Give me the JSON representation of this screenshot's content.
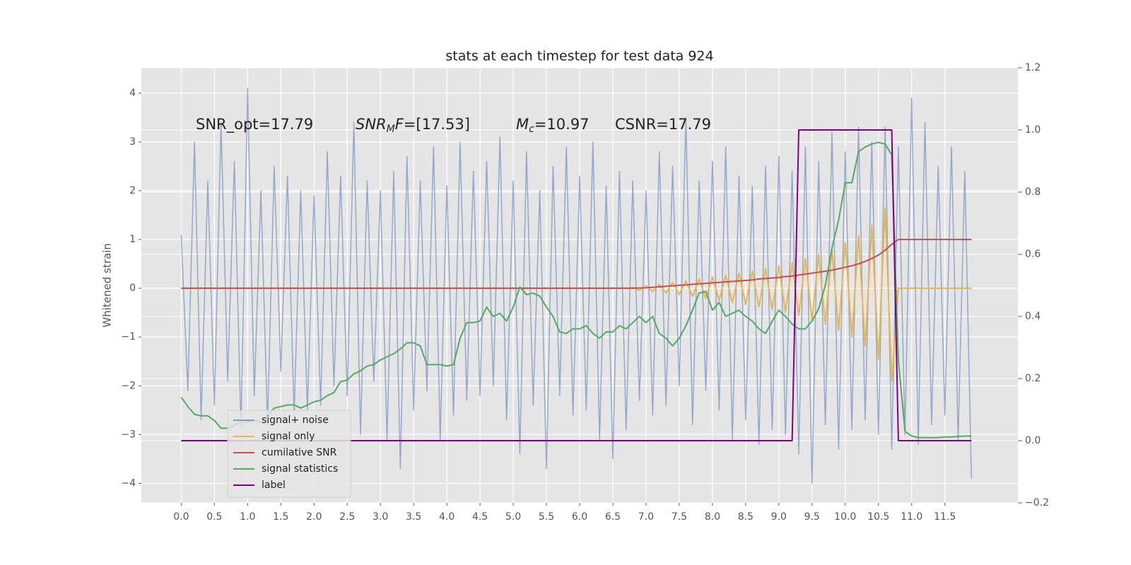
{
  "chart_data": {
    "type": "line",
    "title": "stats at each timestep for test data 924",
    "y_label": "Whitened strain",
    "background": "#e5e5e5",
    "grid": true,
    "annotations": [
      {
        "segments": [
          {
            "text": "SNR_opt=17.79",
            "style": "normal"
          }
        ]
      },
      {
        "segments": [
          {
            "text": "SNR",
            "style": "italic"
          },
          {
            "text": "M",
            "style": "italic-sub"
          },
          {
            "text": "F",
            "style": "italic"
          },
          {
            "text": "=[17.53]",
            "style": "normal"
          }
        ]
      },
      {
        "segments": [
          {
            "text": "M",
            "style": "italic"
          },
          {
            "text": "c",
            "style": "italic-sub"
          },
          {
            "text": "=10.97",
            "style": "normal"
          }
        ]
      },
      {
        "segments": [
          {
            "text": "CSNR=17.79",
            "style": "normal"
          }
        ]
      }
    ],
    "xlim": [
      -0.6,
      12.6
    ],
    "xticks": [
      {
        "value": 0,
        "label": "0.0"
      },
      0.5,
      {
        "value": 1,
        "label": "1.0"
      },
      1.5,
      {
        "value": 2,
        "label": "2.0"
      },
      2.5,
      {
        "value": 3,
        "label": "3.0"
      },
      3.5,
      {
        "value": 4,
        "label": "4.0"
      },
      4.5,
      {
        "value": 5,
        "label": "5.0"
      },
      5.5,
      {
        "value": 6,
        "label": "6.0"
      },
      6.5,
      {
        "value": 7,
        "label": "7.0"
      },
      7.5,
      {
        "value": 8,
        "label": "8.0"
      },
      8.5,
      {
        "value": 9,
        "label": "9.0"
      },
      9.5,
      {
        "value": 10,
        "label": "10.0"
      },
      10.5,
      {
        "value": 11,
        "label": "11.0"
      },
      11.5
    ],
    "ylim": [
      -4.4,
      4.52
    ],
    "yticks": [
      {
        "value": -4,
        "label": "−4"
      },
      {
        "value": -3,
        "label": "−3"
      },
      {
        "value": -2,
        "label": "−2"
      },
      {
        "value": -1,
        "label": "−1"
      },
      0,
      1,
      2,
      3,
      4
    ],
    "y2lim": [
      -0.2,
      1.2
    ],
    "y2ticks": [
      {
        "value": -0.2,
        "label": "−0.2"
      },
      {
        "value": 0,
        "label": "0.0"
      },
      0.2,
      0.4,
      0.6,
      0.8,
      {
        "value": 1,
        "label": "1.0"
      },
      {
        "value": 1.2,
        "label": "1.2"
      }
    ],
    "legend": {
      "loc": "lower left"
    },
    "x": [
      0.0,
      0.1,
      0.2,
      0.3,
      0.4,
      0.5,
      0.6,
      0.7,
      0.8,
      0.9,
      1.0,
      1.1,
      1.2,
      1.3,
      1.4,
      1.5,
      1.6,
      1.7,
      1.8,
      1.9,
      2.0,
      2.1,
      2.2,
      2.3,
      2.4,
      2.5,
      2.6,
      2.7,
      2.8,
      2.9,
      3.0,
      3.1,
      3.2,
      3.3,
      3.4,
      3.5,
      3.6,
      3.7,
      3.8,
      3.9,
      4.0,
      4.1,
      4.2,
      4.3,
      4.4,
      4.5,
      4.6,
      4.7,
      4.8,
      4.9,
      5.0,
      5.1,
      5.2,
      5.3,
      5.4,
      5.5,
      5.6,
      5.7,
      5.8,
      5.9,
      6.0,
      6.1,
      6.2,
      6.3,
      6.4,
      6.5,
      6.6,
      6.7,
      6.8,
      6.9,
      7.0,
      7.1,
      7.2,
      7.3,
      7.4,
      7.5,
      7.6,
      7.7,
      7.8,
      7.9,
      8.0,
      8.1,
      8.2,
      8.3,
      8.4,
      8.5,
      8.6,
      8.7,
      8.8,
      8.9,
      9.0,
      9.1,
      9.2,
      9.3,
      9.4,
      9.5,
      9.6,
      9.7,
      9.8,
      9.9,
      10.0,
      10.1,
      10.2,
      10.3,
      10.4,
      10.5,
      10.6,
      10.7,
      10.8,
      10.9,
      11.0,
      11.1,
      11.2,
      11.3,
      11.4,
      11.5,
      11.6,
      11.7,
      11.8,
      11.9
    ],
    "series": [
      {
        "name": "signal+ noise",
        "color": "#8197c4",
        "axis": "y",
        "values": [
          1.1,
          -2.1,
          3.0,
          -2.7,
          2.2,
          -2.4,
          3.4,
          -1.9,
          2.6,
          -2.9,
          4.1,
          -2.2,
          2.0,
          -2.8,
          2.5,
          -1.7,
          2.3,
          -2.6,
          2.0,
          -2.5,
          1.9,
          -2.4,
          2.8,
          -2.0,
          2.3,
          -2.2,
          3.4,
          -3.0,
          2.2,
          -1.9,
          2.0,
          -3.1,
          2.4,
          -3.7,
          2.7,
          -2.5,
          2.2,
          -2.1,
          2.9,
          -3.1,
          2.1,
          -2.6,
          3.0,
          -2.3,
          2.4,
          -2.2,
          2.6,
          -2.0,
          3.1,
          -2.7,
          2.2,
          -3.4,
          2.8,
          -2.4,
          2.0,
          -3.7,
          2.5,
          -2.2,
          2.9,
          -2.6,
          2.3,
          -2.5,
          3.0,
          -3.1,
          2.1,
          -3.5,
          2.4,
          -2.9,
          2.2,
          -2.3,
          2.0,
          -2.6,
          2.8,
          -2.4,
          2.5,
          -2.0,
          3.5,
          -2.8,
          2.2,
          -2.1,
          2.6,
          -2.5,
          2.9,
          -3.1,
          2.3,
          -2.7,
          2.1,
          -3.2,
          2.5,
          -2.9,
          2.7,
          -3.0,
          2.4,
          -3.4,
          2.9,
          -4.0,
          2.6,
          -2.8,
          3.2,
          -3.3,
          2.8,
          -2.9,
          3.3,
          -2.7,
          3.0,
          -3.0,
          3.3,
          -3.3,
          2.9,
          -3.0,
          3.9,
          -3.2,
          3.4,
          -2.8,
          2.5,
          -2.6,
          2.9,
          -3.1,
          2.4,
          -3.9
        ]
      },
      {
        "name": "signal only",
        "color": "#e8b54d",
        "axis": "y",
        "values": [
          0,
          0,
          0,
          0,
          0,
          0,
          0,
          0,
          0,
          0,
          0,
          0,
          0,
          0,
          0,
          0,
          0,
          0,
          0,
          0,
          0,
          0,
          0,
          0,
          0,
          0,
          0,
          0,
          0,
          0,
          0,
          0,
          0,
          0,
          0,
          0,
          0,
          0,
          0,
          0,
          0,
          0,
          0,
          0,
          0,
          0,
          0,
          0,
          0,
          0,
          0,
          0,
          0,
          0,
          0,
          0,
          0,
          0,
          0,
          0,
          0,
          0,
          0,
          0,
          0,
          0,
          0,
          0,
          0.02,
          -0.04,
          0.05,
          -0.07,
          0.08,
          -0.1,
          0.12,
          -0.13,
          0.15,
          -0.17,
          0.19,
          -0.21,
          0.23,
          -0.25,
          0.27,
          -0.29,
          0.31,
          -0.33,
          0.35,
          -0.38,
          0.4,
          -0.43,
          0.46,
          -0.49,
          0.52,
          -0.56,
          0.6,
          -0.64,
          0.69,
          -0.74,
          0.8,
          -0.86,
          0.93,
          -1.0,
          1.08,
          -1.18,
          1.3,
          -1.45,
          1.65,
          -1.9,
          0,
          0,
          0,
          0,
          0,
          0,
          0,
          0,
          0,
          0,
          0,
          0
        ]
      },
      {
        "name": "cumilative SNR",
        "color": "#c44e52",
        "axis": "y",
        "values": [
          0,
          0,
          0,
          0,
          0,
          0,
          0,
          0,
          0,
          0,
          0,
          0,
          0,
          0,
          0,
          0,
          0,
          0,
          0,
          0,
          0,
          0,
          0,
          0,
          0,
          0,
          0,
          0,
          0,
          0,
          0,
          0,
          0,
          0,
          0,
          0,
          0,
          0,
          0,
          0,
          0,
          0,
          0,
          0,
          0,
          0,
          0,
          0,
          0,
          0,
          0,
          0,
          0,
          0,
          0,
          0,
          0,
          0,
          0,
          0,
          0,
          0,
          0,
          0,
          0,
          0,
          0,
          0,
          0.0,
          0.005,
          0.01,
          0.02,
          0.03,
          0.04,
          0.05,
          0.06,
          0.07,
          0.08,
          0.09,
          0.1,
          0.11,
          0.12,
          0.13,
          0.14,
          0.15,
          0.16,
          0.17,
          0.19,
          0.2,
          0.21,
          0.22,
          0.24,
          0.25,
          0.27,
          0.29,
          0.31,
          0.33,
          0.35,
          0.37,
          0.4,
          0.43,
          0.46,
          0.5,
          0.55,
          0.61,
          0.68,
          0.78,
          0.9,
          1.0,
          1.0,
          1.0,
          1.0,
          1.0,
          1.0,
          1.0,
          1.0,
          1.0,
          1.0,
          1.0,
          1.0
        ]
      },
      {
        "name": "signal statistics",
        "color": "#55a868",
        "axis": "y2",
        "values": [
          0.14,
          0.11,
          0.085,
          0.08,
          0.08,
          0.065,
          0.04,
          0.04,
          0.05,
          0.06,
          0.06,
          0.065,
          0.06,
          0.08,
          0.105,
          0.11,
          0.115,
          0.115,
          0.105,
          0.115,
          0.125,
          0.13,
          0.145,
          0.155,
          0.19,
          0.195,
          0.215,
          0.225,
          0.24,
          0.245,
          0.26,
          0.27,
          0.28,
          0.295,
          0.315,
          0.315,
          0.305,
          0.245,
          0.245,
          0.245,
          0.24,
          0.245,
          0.33,
          0.38,
          0.38,
          0.385,
          0.43,
          0.4,
          0.41,
          0.385,
          0.43,
          0.495,
          0.47,
          0.475,
          0.465,
          0.43,
          0.4,
          0.35,
          0.345,
          0.36,
          0.36,
          0.37,
          0.345,
          0.33,
          0.35,
          0.35,
          0.37,
          0.36,
          0.38,
          0.4,
          0.38,
          0.4,
          0.345,
          0.33,
          0.305,
          0.33,
          0.37,
          0.42,
          0.475,
          0.48,
          0.42,
          0.445,
          0.4,
          0.41,
          0.42,
          0.4,
          0.385,
          0.36,
          0.345,
          0.385,
          0.42,
          0.4,
          0.375,
          0.36,
          0.36,
          0.385,
          0.425,
          0.5,
          0.62,
          0.71,
          0.83,
          0.83,
          0.93,
          0.945,
          0.955,
          0.96,
          0.955,
          0.92,
          0.26,
          0.03,
          0.015,
          0.01,
          0.01,
          0.01,
          0.01,
          0.012,
          0.012,
          0.014,
          0.015,
          0.015
        ]
      },
      {
        "name": "label",
        "color": "#800080",
        "axis": "y2",
        "values": [
          0,
          0,
          0,
          0,
          0,
          0,
          0,
          0,
          0,
          0,
          0,
          0,
          0,
          0,
          0,
          0,
          0,
          0,
          0,
          0,
          0,
          0,
          0,
          0,
          0,
          0,
          0,
          0,
          0,
          0,
          0,
          0,
          0,
          0,
          0,
          0,
          0,
          0,
          0,
          0,
          0,
          0,
          0,
          0,
          0,
          0,
          0,
          0,
          0,
          0,
          0,
          0,
          0,
          0,
          0,
          0,
          0,
          0,
          0,
          0,
          0,
          0,
          0,
          0,
          0,
          0,
          0,
          0,
          0,
          0,
          0,
          0,
          0,
          0,
          0,
          0,
          0,
          0,
          0,
          0,
          0,
          0,
          0,
          0,
          0,
          0,
          0,
          0,
          0,
          0,
          0,
          0,
          0,
          1,
          1,
          1,
          1,
          1,
          1,
          1,
          1,
          1,
          1,
          1,
          1,
          1,
          1,
          1,
          0,
          0,
          0,
          0,
          0,
          0,
          0,
          0,
          0,
          0,
          0,
          0
        ]
      }
    ]
  }
}
